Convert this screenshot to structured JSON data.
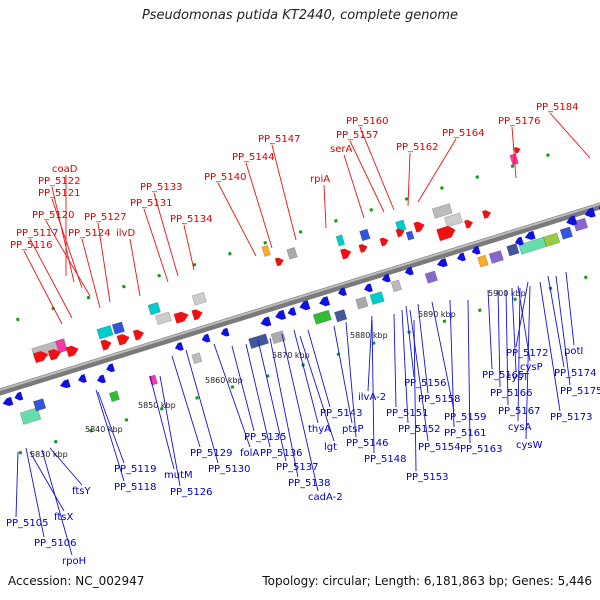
{
  "title": "Pseudomonas putida KT2440, complete genome",
  "footer": {
    "accession": "Accession: NC_002947",
    "summary": "Topology: circular; Length: 6,181,863 bp; Genes: 5,446"
  },
  "colors": {
    "plus_strand": "#ee1111",
    "minus_strand": "#1111dd",
    "axis": "#888888",
    "tick": "#119911"
  },
  "kbp_ticks": [
    "5830 kbp",
    "5840 kbp",
    "5850 kbp",
    "5860 kbp",
    "5870 kbp",
    "5880 kbp",
    "5890 kbp",
    "5900 kbp"
  ],
  "top_labels": [
    "coaD",
    "PP_5122",
    "PP_5121",
    "PP_5120",
    "PP_5117",
    "PP_5116",
    "PP_5124",
    "PP_5127",
    "ilvD",
    "PP_5133",
    "PP_5131",
    "PP_5134",
    "PP_5140",
    "PP_5144",
    "PP_5147",
    "rpiA",
    "serA",
    "PP_5157",
    "PP_5160",
    "PP_5162",
    "PP_5164",
    "PP_5176",
    "PP_5184"
  ],
  "bottom_labels": [
    "PP_5105",
    "ftsX",
    "PP_5106",
    "rpoH",
    "ftsY",
    "PP_5119",
    "PP_5118",
    "mutM",
    "PP_5126",
    "PP_5129",
    "PP_5130",
    "folA",
    "PP_5135",
    "PP_5136",
    "PP_5137",
    "PP_5138",
    "cadA-2",
    "lgt",
    "thyA",
    "PP_5143",
    "ptsP",
    "PP_5146",
    "PP_5148",
    "ilvA-2",
    "PP_5151",
    "PP_5152",
    "PP_5154",
    "PP_5153",
    "PP_5156",
    "PP_5158",
    "PP_5159",
    "PP_5161",
    "PP_5163",
    "PP_5165",
    "PP_5166",
    "PP_5167",
    "cysT",
    "cysP",
    "cysA",
    "cysW",
    "PP_5172",
    "PP_5173",
    "PP_5174",
    "PP_5175",
    "potI"
  ]
}
